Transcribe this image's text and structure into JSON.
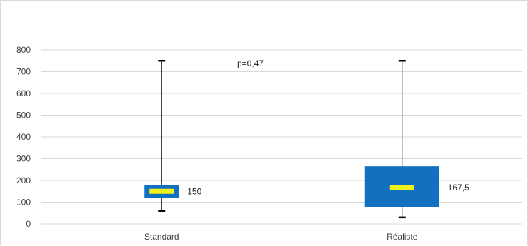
{
  "chart_data": {
    "type": "boxplot",
    "ylim": [
      0,
      800
    ],
    "yticks": [
      "0",
      "100",
      "200",
      "300",
      "400",
      "500",
      "600",
      "700",
      "800"
    ],
    "grid": true,
    "annotation": "p=0,47",
    "categories": [
      "Standard",
      "Réaliste"
    ],
    "boxes": [
      {
        "category": "Standard",
        "min": 60,
        "q1": 118,
        "median": 150,
        "q3": 180,
        "max": 750,
        "median_label": "150"
      },
      {
        "category": "Réaliste",
        "min": 30,
        "q1": 78,
        "median": 167.5,
        "q3": 265,
        "max": 750,
        "median_label": "167,5"
      }
    ],
    "colors": {
      "box": "#1270c0",
      "median": "#f2f21a",
      "whisker": "#000000",
      "grid": "#d9d9d9"
    }
  }
}
